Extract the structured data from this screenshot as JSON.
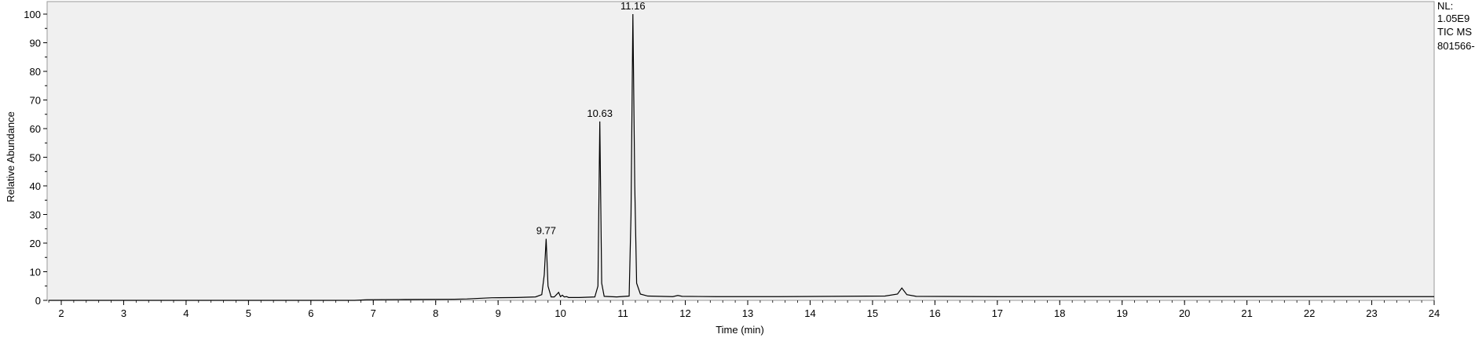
{
  "chart_data": {
    "type": "line",
    "title": "",
    "xlabel": "Time (min)",
    "ylabel": "Relative Abundance",
    "xlim": [
      1.8,
      24
    ],
    "ylim": [
      0,
      100
    ],
    "x_ticks": [
      2,
      3,
      4,
      5,
      6,
      7,
      8,
      9,
      10,
      11,
      12,
      13,
      14,
      15,
      16,
      17,
      18,
      19,
      20,
      21,
      22,
      23,
      24
    ],
    "y_ticks": [
      0,
      10,
      20,
      30,
      40,
      50,
      60,
      70,
      80,
      90,
      100
    ],
    "grid": false,
    "legend": "none",
    "line_color": "#000000",
    "plot_background": "#f0f0f0",
    "series": [
      {
        "x": [
          1.8,
          6.7,
          6.9,
          7.5,
          8.3,
          8.5,
          8.9,
          9.3,
          9.6,
          9.7,
          9.74,
          9.77,
          9.8,
          9.85,
          9.9,
          9.97,
          10.0,
          10.03,
          10.06,
          10.1,
          10.13,
          10.3,
          10.55,
          10.6,
          10.63,
          10.66,
          10.7,
          10.9,
          11.1,
          11.13,
          11.16,
          11.19,
          11.22,
          11.28,
          11.4,
          11.8,
          11.88,
          11.95,
          12.5,
          13.5,
          15.2,
          15.4,
          15.47,
          15.55,
          15.7,
          17.0,
          24.0
        ],
        "y": [
          0,
          0,
          0.2,
          0.3,
          0.4,
          0.5,
          0.9,
          1.0,
          1.2,
          2.0,
          9.0,
          21.5,
          5.0,
          1.2,
          1.2,
          2.8,
          1.3,
          1.8,
          1.2,
          1.3,
          1.0,
          1.0,
          1.2,
          5.0,
          62.5,
          6.0,
          1.4,
          1.2,
          1.5,
          30.0,
          100,
          40.0,
          6.0,
          2.2,
          1.5,
          1.3,
          1.7,
          1.4,
          1.3,
          1.3,
          1.5,
          2.2,
          4.3,
          2.0,
          1.4,
          1.3,
          1.3
        ]
      }
    ],
    "peak_labels": [
      {
        "x": 9.77,
        "y": 21.5,
        "label": "9.77"
      },
      {
        "x": 10.63,
        "y": 62.5,
        "label": "10.63"
      },
      {
        "x": 11.16,
        "y": 100,
        "label": "11.16"
      }
    ]
  },
  "side_info": {
    "line1": "NL:",
    "line2": "1.05E9",
    "line3": "TIC  MS",
    "line4": "801566-"
  }
}
